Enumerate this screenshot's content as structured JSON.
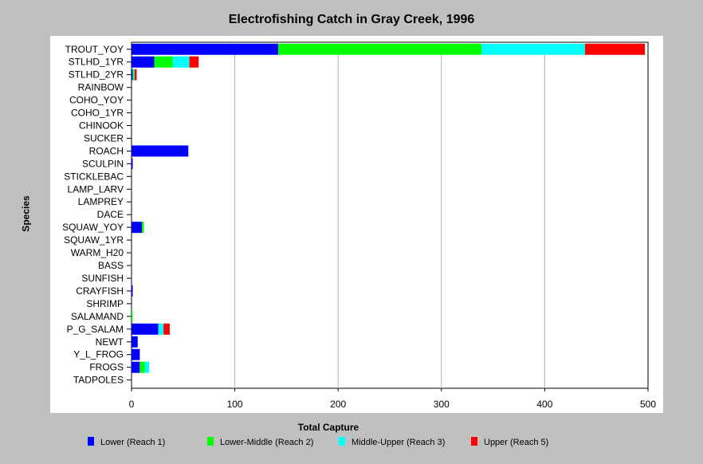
{
  "chart_data": {
    "type": "bar",
    "orientation": "horizontal",
    "stacked": true,
    "title": "Electrofishing Catch in Gray Creek, 1996",
    "xlabel": "Total Capture",
    "ylabel": "Species",
    "xlim": [
      0,
      500
    ],
    "xticks": [
      "0",
      "100",
      "200",
      "300",
      "400",
      "500"
    ],
    "grid": "vertical",
    "legend_position": "bottom",
    "categories": [
      "TROUT_YOY",
      "STLHD_1YR",
      "STLHD_2YR",
      "RAINBOW",
      "COHO_YOY",
      "COHO_1YR",
      "CHINOOK",
      "SUCKER",
      "ROACH",
      "SCULPIN",
      "STICKLEBAC",
      "LAMP_LARV",
      "LAMPREY",
      "DACE",
      "SQUAW_YOY",
      "SQUAW_1YR",
      "WARM_H20",
      "BASS",
      "SUNFISH",
      "CRAYFISH",
      "SHRIMP",
      "SALAMAND",
      "P_G_SALAM",
      "NEWT",
      "Y_L_FROG",
      "FROGS",
      "TADPOLES"
    ],
    "series": [
      {
        "name": "Lower (Reach 1)",
        "color": "#0000ff",
        "values": [
          142,
          22,
          1,
          0,
          0,
          0,
          0,
          0,
          55,
          1,
          0,
          0,
          0,
          0,
          10,
          0,
          0,
          0,
          0,
          1,
          0,
          0,
          26,
          6,
          8,
          8,
          0
        ]
      },
      {
        "name": "Lower-Middle (Reach 2)",
        "color": "#00ff00",
        "values": [
          197,
          18,
          1,
          0,
          0,
          0,
          0,
          0,
          0,
          0,
          0,
          0,
          0,
          0,
          2,
          0,
          0,
          0,
          0,
          0,
          0,
          1,
          0,
          0,
          0,
          5,
          0
        ]
      },
      {
        "name": "Middle-Upper (Reach 3)",
        "color": "#00ffff",
        "values": [
          100,
          16,
          1,
          0,
          0,
          0,
          0,
          0,
          0,
          0,
          0,
          0,
          0,
          0,
          0,
          0,
          0,
          0,
          0,
          0,
          0,
          0,
          5,
          0,
          0,
          4,
          0
        ]
      },
      {
        "name": "Upper (Reach 5)",
        "color": "#ff0000",
        "values": [
          58,
          9,
          2,
          0,
          0,
          0,
          0,
          0,
          0,
          0,
          0,
          0,
          0,
          0,
          0,
          0,
          0,
          0,
          0,
          0,
          0,
          0,
          6,
          0,
          0,
          0,
          0
        ]
      }
    ]
  }
}
